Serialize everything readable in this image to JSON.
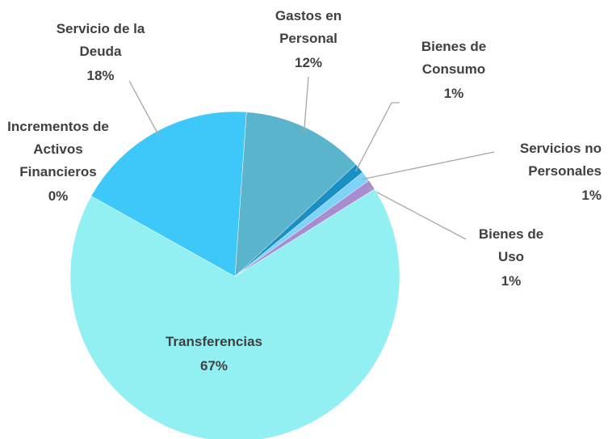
{
  "chart_data": {
    "type": "pie",
    "categories": [
      "Gastos en Personal",
      "Bienes de Consumo",
      "Servicios no Personales",
      "Bienes de Uso",
      "Transferencias",
      "Incrementos de Activos Financieros",
      "Servicio de la Deuda"
    ],
    "values": [
      12,
      1,
      1,
      1,
      67,
      0,
      18
    ],
    "value_labels": [
      "12%",
      "1%",
      "1%",
      "1%",
      "67%",
      "0%",
      "18%"
    ],
    "colors": [
      "#5ab4cc",
      "#1a8fc4",
      "#7dd3f8",
      "#a98bd0",
      "#93f0f2",
      "#3ec8f9",
      "#3ec8f9"
    ]
  }
}
